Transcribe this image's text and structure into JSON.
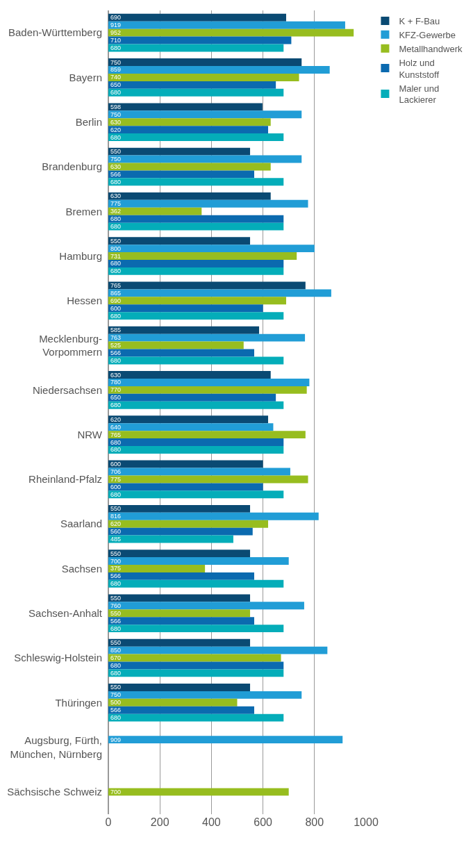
{
  "chart_data": {
    "type": "bar",
    "orientation": "horizontal",
    "categories": [
      "Baden-Württemberg",
      "Bayern",
      "Berlin",
      "Brandenburg",
      "Bremen",
      "Hamburg",
      "Hessen",
      "Mecklenburg-Vorpommern",
      "Niedersachsen",
      "NRW",
      "Rheinland-Pfalz",
      "Saarland",
      "Sachsen",
      "Sachsen-Anhalt",
      "Schleswig-Holstein",
      "Thüringen",
      "Augsburg, Fürth, München, Nürnberg",
      "Sächsische Schweiz"
    ],
    "series": [
      {
        "name": "K + F-Bau",
        "color": "#0a4a73",
        "values": [
          690,
          750,
          598,
          550,
          630,
          550,
          765,
          585,
          630,
          620,
          600,
          550,
          550,
          550,
          550,
          550,
          null,
          null
        ]
      },
      {
        "name": "KFZ-Gewerbe",
        "color": "#219dd6",
        "values": [
          919,
          859,
          750,
          750,
          775,
          800,
          865,
          763,
          780,
          640,
          706,
          816,
          700,
          760,
          850,
          750,
          909,
          null
        ]
      },
      {
        "name": "Metallhandwerk",
        "color": "#97bd1f",
        "values": [
          952,
          740,
          630,
          630,
          362,
          731,
          690,
          525,
          770,
          765,
          775,
          620,
          375,
          550,
          670,
          500,
          null,
          700
        ]
      },
      {
        "name": "Holz und Kunststoff",
        "color": "#0b6aaf",
        "values": [
          710,
          650,
          620,
          566,
          680,
          680,
          600,
          566,
          650,
          680,
          600,
          560,
          566,
          566,
          680,
          566,
          null,
          null
        ]
      },
      {
        "name": "Maler und Lackierer",
        "color": "#04adb9",
        "values": [
          680,
          680,
          680,
          680,
          680,
          680,
          680,
          680,
          680,
          680,
          680,
          485,
          680,
          680,
          680,
          680,
          null,
          null
        ]
      }
    ],
    "xlim": [
      0,
      1000
    ],
    "xticks": [
      0,
      200,
      400,
      600,
      800,
      1000
    ],
    "grid": "x",
    "legend": "top right",
    "data_labels": true
  }
}
